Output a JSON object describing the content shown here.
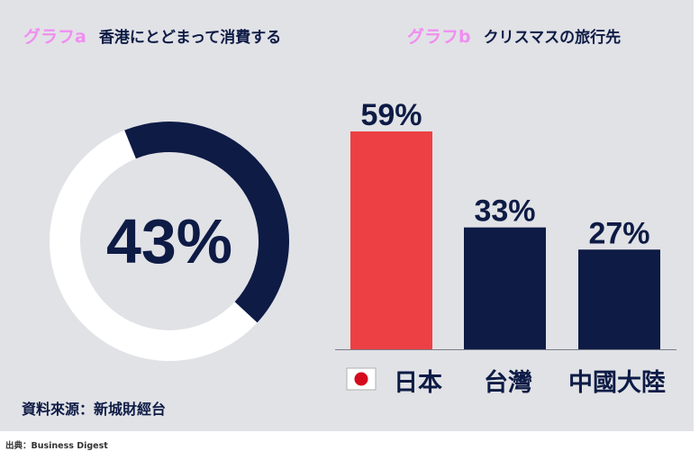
{
  "graph_a": {
    "tag": "グラフa",
    "title": "香港にとどまって消費する"
  },
  "graph_b": {
    "tag": "グラフb",
    "title": "クリスマスの旅行先"
  },
  "source": "資料來源：新城財經台",
  "credit": "出典：Business Digest",
  "colors": {
    "navy": "#0d1b45",
    "red": "#ed4044",
    "white": "#ffffff",
    "pink": "#f08ef0",
    "panel": "#e1e2e6"
  },
  "chart_data": [
    {
      "type": "pie",
      "title": "香港にとどまって消費する",
      "values": [
        43,
        57
      ],
      "label": "43%"
    },
    {
      "type": "bar",
      "title": "クリスマスの旅行先",
      "categories": [
        "日本",
        "台灣",
        "中國大陸"
      ],
      "values": [
        59,
        33,
        27
      ],
      "data_labels": [
        "59%",
        "33%",
        "27%"
      ],
      "highlight": "日本",
      "ylim": [
        0,
        59
      ]
    }
  ]
}
